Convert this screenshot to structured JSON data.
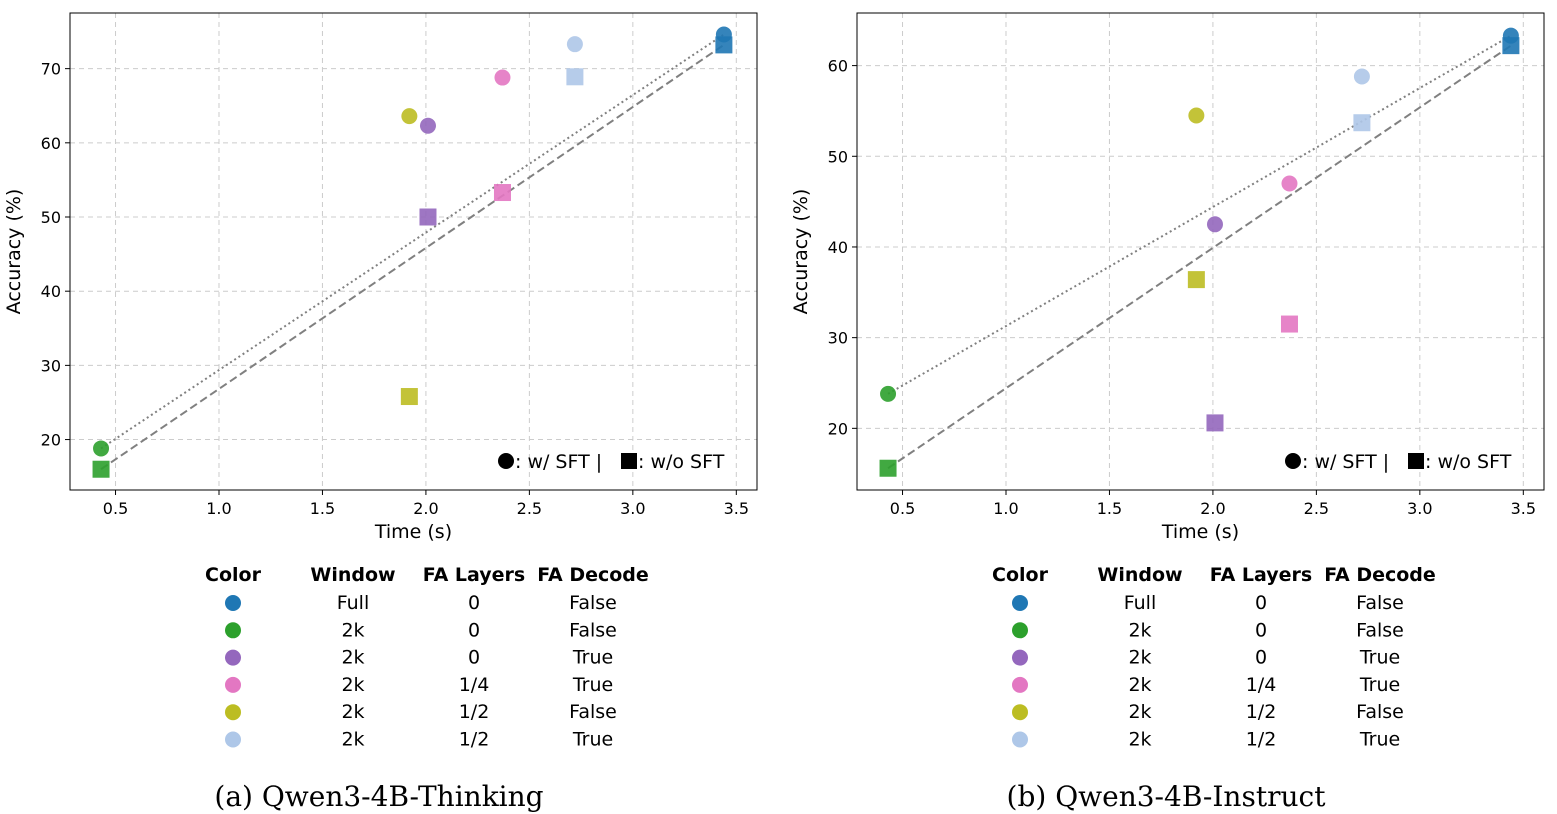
{
  "chart_data": [
    {
      "type": "scatter",
      "caption": "(a) Qwen3-4B-Thinking",
      "xlabel": "Time (s)",
      "ylabel": "Accuracy (%)",
      "xlim": [
        0.28,
        3.6
      ],
      "ylim": [
        13.2,
        77.5
      ],
      "xticks": [
        "0.5",
        "1.0",
        "1.5",
        "2.0",
        "2.5",
        "3.0",
        "3.5"
      ],
      "yticks": [
        "20",
        "30",
        "40",
        "50",
        "60",
        "70"
      ],
      "grid": true,
      "legend_placement": "bottom-right",
      "series": [
        {
          "marker": "circle",
          "points": [
            {
              "config": 0,
              "x": 3.44,
              "y": 74.6
            },
            {
              "config": 1,
              "x": 0.43,
              "y": 18.8
            },
            {
              "config": 2,
              "x": 2.01,
              "y": 62.3
            },
            {
              "config": 3,
              "x": 2.37,
              "y": 68.8
            },
            {
              "config": 4,
              "x": 1.92,
              "y": 63.6
            },
            {
              "config": 5,
              "x": 2.72,
              "y": 73.3
            }
          ]
        },
        {
          "marker": "square",
          "points": [
            {
              "config": 0,
              "x": 3.44,
              "y": 73.2
            },
            {
              "config": 1,
              "x": 0.43,
              "y": 16.0
            },
            {
              "config": 2,
              "x": 2.01,
              "y": 50.0
            },
            {
              "config": 3,
              "x": 2.37,
              "y": 53.3
            },
            {
              "config": 4,
              "x": 1.92,
              "y": 25.8
            },
            {
              "config": 5,
              "x": 2.72,
              "y": 68.9
            }
          ]
        }
      ],
      "trend_lines": [
        {
          "style": "dotted",
          "from": [
            0.43,
            18.8
          ],
          "to": [
            3.44,
            74.6
          ]
        },
        {
          "style": "dashed",
          "from": [
            0.43,
            16.0
          ],
          "to": [
            3.44,
            73.2
          ]
        }
      ]
    },
    {
      "type": "scatter",
      "caption": "(b) Qwen3-4B-Instruct",
      "xlabel": "Time (s)",
      "ylabel": "Accuracy (%)",
      "xlim": [
        0.28,
        3.6
      ],
      "ylim": [
        13.2,
        65.8
      ],
      "xticks": [
        "0.5",
        "1.0",
        "1.5",
        "2.0",
        "2.5",
        "3.0",
        "3.5"
      ],
      "yticks": [
        "20",
        "30",
        "40",
        "50",
        "60"
      ],
      "grid": true,
      "legend_placement": "bottom-right",
      "series": [
        {
          "marker": "circle",
          "points": [
            {
              "config": 0,
              "x": 3.44,
              "y": 63.3
            },
            {
              "config": 1,
              "x": 0.43,
              "y": 23.8
            },
            {
              "config": 2,
              "x": 2.01,
              "y": 42.5
            },
            {
              "config": 3,
              "x": 2.37,
              "y": 47.0
            },
            {
              "config": 4,
              "x": 1.92,
              "y": 54.5
            },
            {
              "config": 5,
              "x": 2.72,
              "y": 58.8
            }
          ]
        },
        {
          "marker": "square",
          "points": [
            {
              "config": 0,
              "x": 3.44,
              "y": 62.2
            },
            {
              "config": 1,
              "x": 0.43,
              "y": 15.6
            },
            {
              "config": 2,
              "x": 2.01,
              "y": 20.6
            },
            {
              "config": 3,
              "x": 2.37,
              "y": 31.5
            },
            {
              "config": 4,
              "x": 1.92,
              "y": 36.4
            },
            {
              "config": 5,
              "x": 2.72,
              "y": 53.7
            }
          ]
        }
      ],
      "trend_lines": [
        {
          "style": "dotted",
          "from": [
            0.43,
            23.8
          ],
          "to": [
            3.44,
            63.3
          ]
        },
        {
          "style": "dashed",
          "from": [
            0.43,
            15.6
          ],
          "to": [
            3.44,
            62.2
          ]
        }
      ]
    }
  ],
  "legend": {
    "circle_text": ": w/ SFT | ",
    "square_text": ":  w/o SFT"
  },
  "config_table": {
    "headers": [
      "Color",
      "Window",
      "FA Layers",
      "FA Decode"
    ],
    "rows": [
      {
        "color": "#1f77b4",
        "window": "Full",
        "fa_layers": "0",
        "fa_decode": "False"
      },
      {
        "color": "#2ca02c",
        "window": "2k",
        "fa_layers": "0",
        "fa_decode": "False"
      },
      {
        "color": "#9467bd",
        "window": "2k",
        "fa_layers": "0",
        "fa_decode": "True"
      },
      {
        "color": "#e377c2",
        "window": "2k",
        "fa_layers": "1/4",
        "fa_decode": "True"
      },
      {
        "color": "#bcbd22",
        "window": "2k",
        "fa_layers": "1/2",
        "fa_decode": "False"
      },
      {
        "color": "#aec7e8",
        "window": "2k",
        "fa_layers": "1/2",
        "fa_decode": "True"
      }
    ]
  },
  "colors": {
    "trend_line": "#808080",
    "grid": "#cccccc"
  }
}
